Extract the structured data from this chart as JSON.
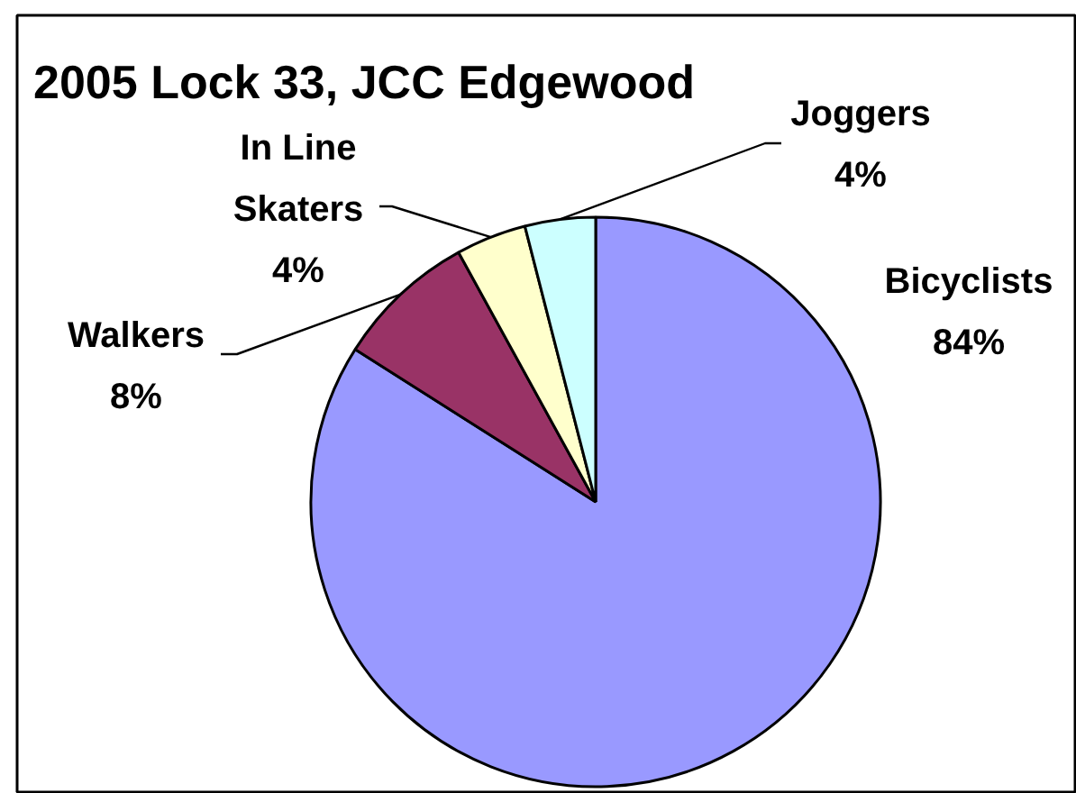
{
  "chart_data": {
    "type": "pie",
    "title": "2005 Lock 33, JCC Edgewood",
    "categories": [
      "Bicyclists",
      "Walkers",
      "In Line Skaters",
      "Joggers"
    ],
    "values": [
      84,
      8,
      4,
      4
    ],
    "colors": [
      "#9999ff",
      "#993366",
      "#ffffcc",
      "#ccffff"
    ],
    "value_labels": [
      "84%",
      "8%",
      "4%",
      "4%"
    ]
  }
}
